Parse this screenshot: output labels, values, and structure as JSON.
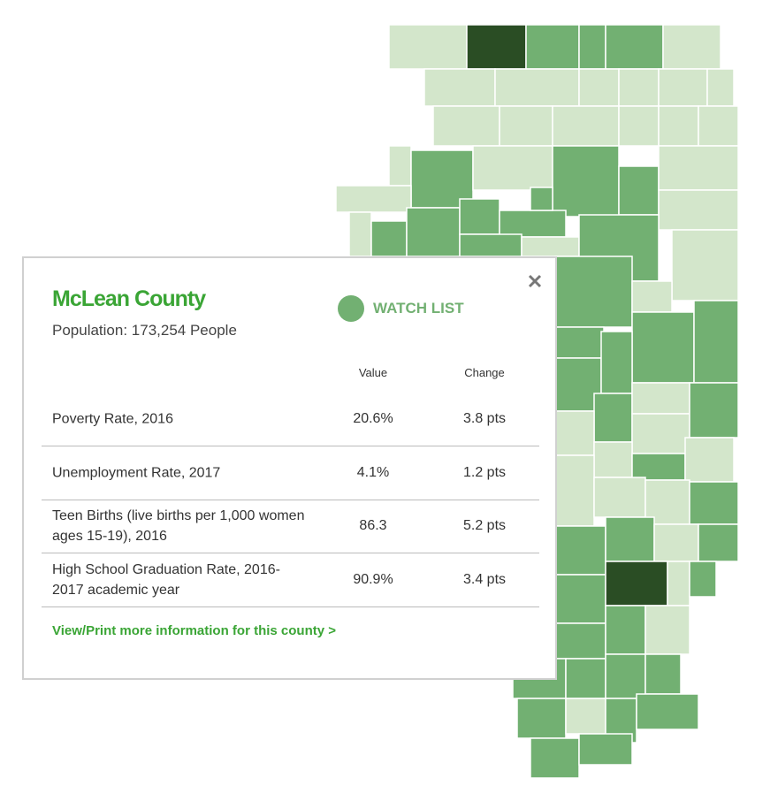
{
  "popup": {
    "title": "McLean County",
    "population": "Population: 173,254 People",
    "watch_list": "WATCH LIST",
    "table": {
      "header": [
        "Value",
        "Change"
      ],
      "rows": [
        [
          "Poverty Rate, 2016",
          "20.6%",
          "3.8 pts"
        ],
        [
          "Unemployment Rate, 2017",
          "4.1%",
          "1.2 pts"
        ],
        [
          "Teen Births (live births per 1,000 women ages 15-19), 2016",
          "86.3",
          "5.2 pts"
        ],
        [
          "High School Graduation Rate, 2016-2017 academic year",
          "90.9%",
          "3.4 pts"
        ]
      ]
    },
    "link": "View/Print more information for this county >"
  }
}
